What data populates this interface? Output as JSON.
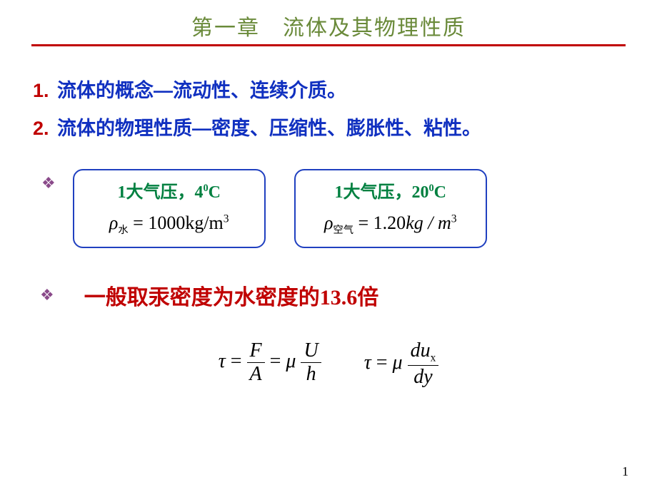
{
  "colors": {
    "title": "#6a8a3a",
    "underline": "#c00000",
    "list_num": "#c00000",
    "list_text": "#1030c0",
    "diamond": "#8a4a8a",
    "box_border": "#2040c0",
    "box_label": "#008040",
    "eqn_text": "#000000",
    "hg_text": "#c00000",
    "formula": "#000000",
    "page_num": "#000000"
  },
  "title": "第一章　流体及其物理性质",
  "list": [
    {
      "num": "1.",
      "text": "流体的概念—流动性、连续介质。"
    },
    {
      "num": "2.",
      "text": "流体的物理性质—密度、压缩性、膨胀性、粘性。"
    }
  ],
  "box1": {
    "label_pre": "1大气压，4",
    "label_supzero": "0",
    "label_post": "C",
    "rho_sub": "水",
    "rho_val": "= 1000kg/m",
    "rho_sup": "3"
  },
  "box2": {
    "label_pre": "1大气压，20",
    "label_supzero": "0",
    "label_post": "C",
    "rho_sub": "空气",
    "rho_val_pre": "= 1.20",
    "rho_unit": "kg / m",
    "rho_sup": "3"
  },
  "diamond_glyph": "❖",
  "hg_line": "一般取汞密度为水密度的13.6倍",
  "formula1": {
    "lhs": "τ",
    "eq": "=",
    "frac1_num": "F",
    "frac1_den": "A",
    "mu": "μ",
    "frac2_num": "U",
    "frac2_den": "h"
  },
  "formula2": {
    "lhs": "τ",
    "eq": "=",
    "mu": "μ",
    "frac_num_pre": "du",
    "frac_num_sub": "x",
    "frac_den": "dy"
  },
  "page_number": "1"
}
